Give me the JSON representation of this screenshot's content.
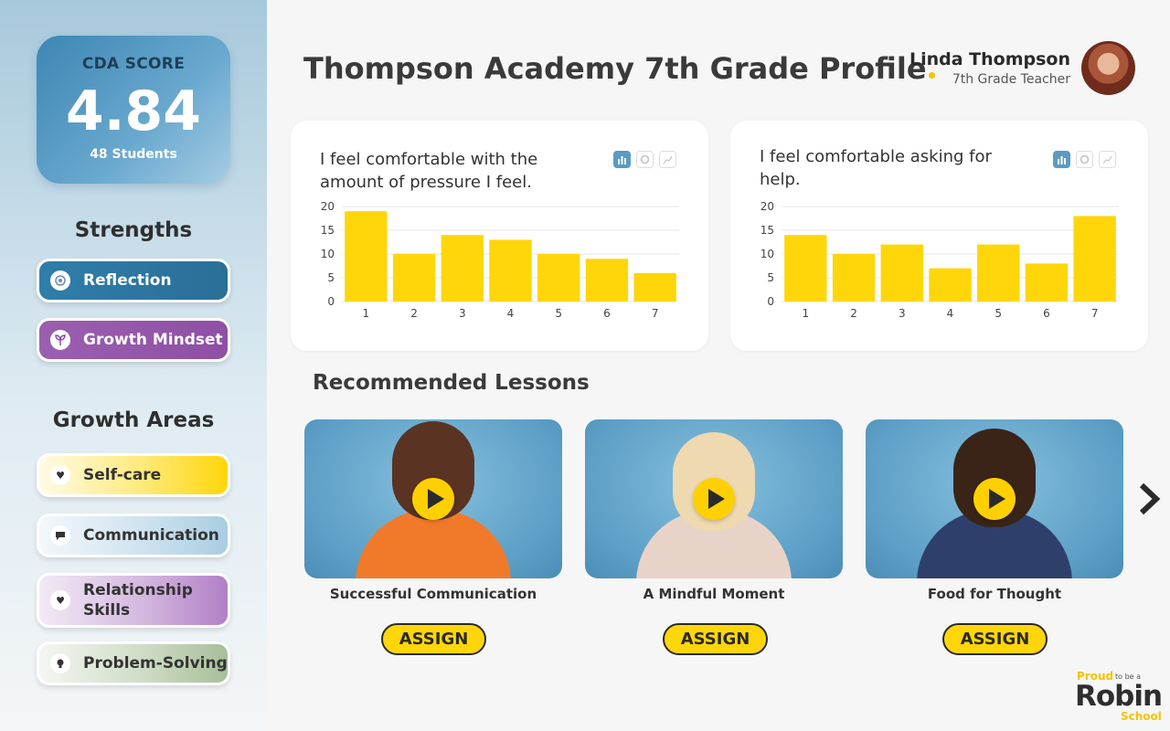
{
  "sidebar": {
    "score": {
      "label": "CDA SCORE",
      "value": "4.84",
      "students": "48 Students"
    },
    "strengths_title": "Strengths",
    "strengths": [
      {
        "label": "Reflection",
        "icon": "lotus-icon"
      },
      {
        "label": "Growth Mindset",
        "icon": "sprout-icon"
      }
    ],
    "growth_title": "Growth Areas",
    "growth_areas": [
      {
        "label": "Self-care",
        "icon": "heart-icon"
      },
      {
        "label": "Communication",
        "icon": "speech-bubble-icon"
      },
      {
        "label": "Relationship Skills",
        "icon": "handshake-heart-icon"
      },
      {
        "label": "Problem-Solving",
        "icon": "lightbulb-icon"
      }
    ]
  },
  "header": {
    "title": "Thompson Academy 7th Grade Profile",
    "teacher_name": "Linda Thompson",
    "teacher_role": "7th Grade Teacher"
  },
  "chart_data": [
    {
      "type": "bar",
      "title": "I feel comfortable with the amount of pressure I feel.",
      "categories": [
        "1",
        "2",
        "3",
        "4",
        "5",
        "6",
        "7"
      ],
      "values": [
        19,
        10,
        14,
        13,
        10,
        9,
        6
      ],
      "yticks": [
        0,
        5,
        10,
        15,
        20
      ],
      "ylim": [
        0,
        20
      ],
      "grid": true,
      "color": "#FFD60A"
    },
    {
      "type": "bar",
      "title": "I feel comfortable asking for help.",
      "categories": [
        "1",
        "2",
        "3",
        "4",
        "5",
        "6",
        "7"
      ],
      "values": [
        14,
        10,
        12,
        7,
        12,
        8,
        18
      ],
      "yticks": [
        0,
        5,
        10,
        15,
        20
      ],
      "ylim": [
        0,
        20
      ],
      "grid": true,
      "color": "#FFD60A"
    }
  ],
  "chart_toggles": [
    "bar-chart-icon",
    "donut-chart-icon",
    "line-chart-icon"
  ],
  "lessons": {
    "title": "Recommended Lessons",
    "items": [
      {
        "name": "Successful Communication",
        "assign_label": "ASSIGN"
      },
      {
        "name": "A Mindful Moment",
        "assign_label": "ASSIGN"
      },
      {
        "name": "Food for Thought",
        "assign_label": "ASSIGN"
      }
    ]
  },
  "brand": {
    "proud": "Proud",
    "tobea": "to be a",
    "robin": "Robin",
    "school": "School"
  },
  "colors": {
    "accent_yellow": "#FFD60A",
    "blue": "#2F7EAA",
    "purple": "#9B5FB0"
  }
}
